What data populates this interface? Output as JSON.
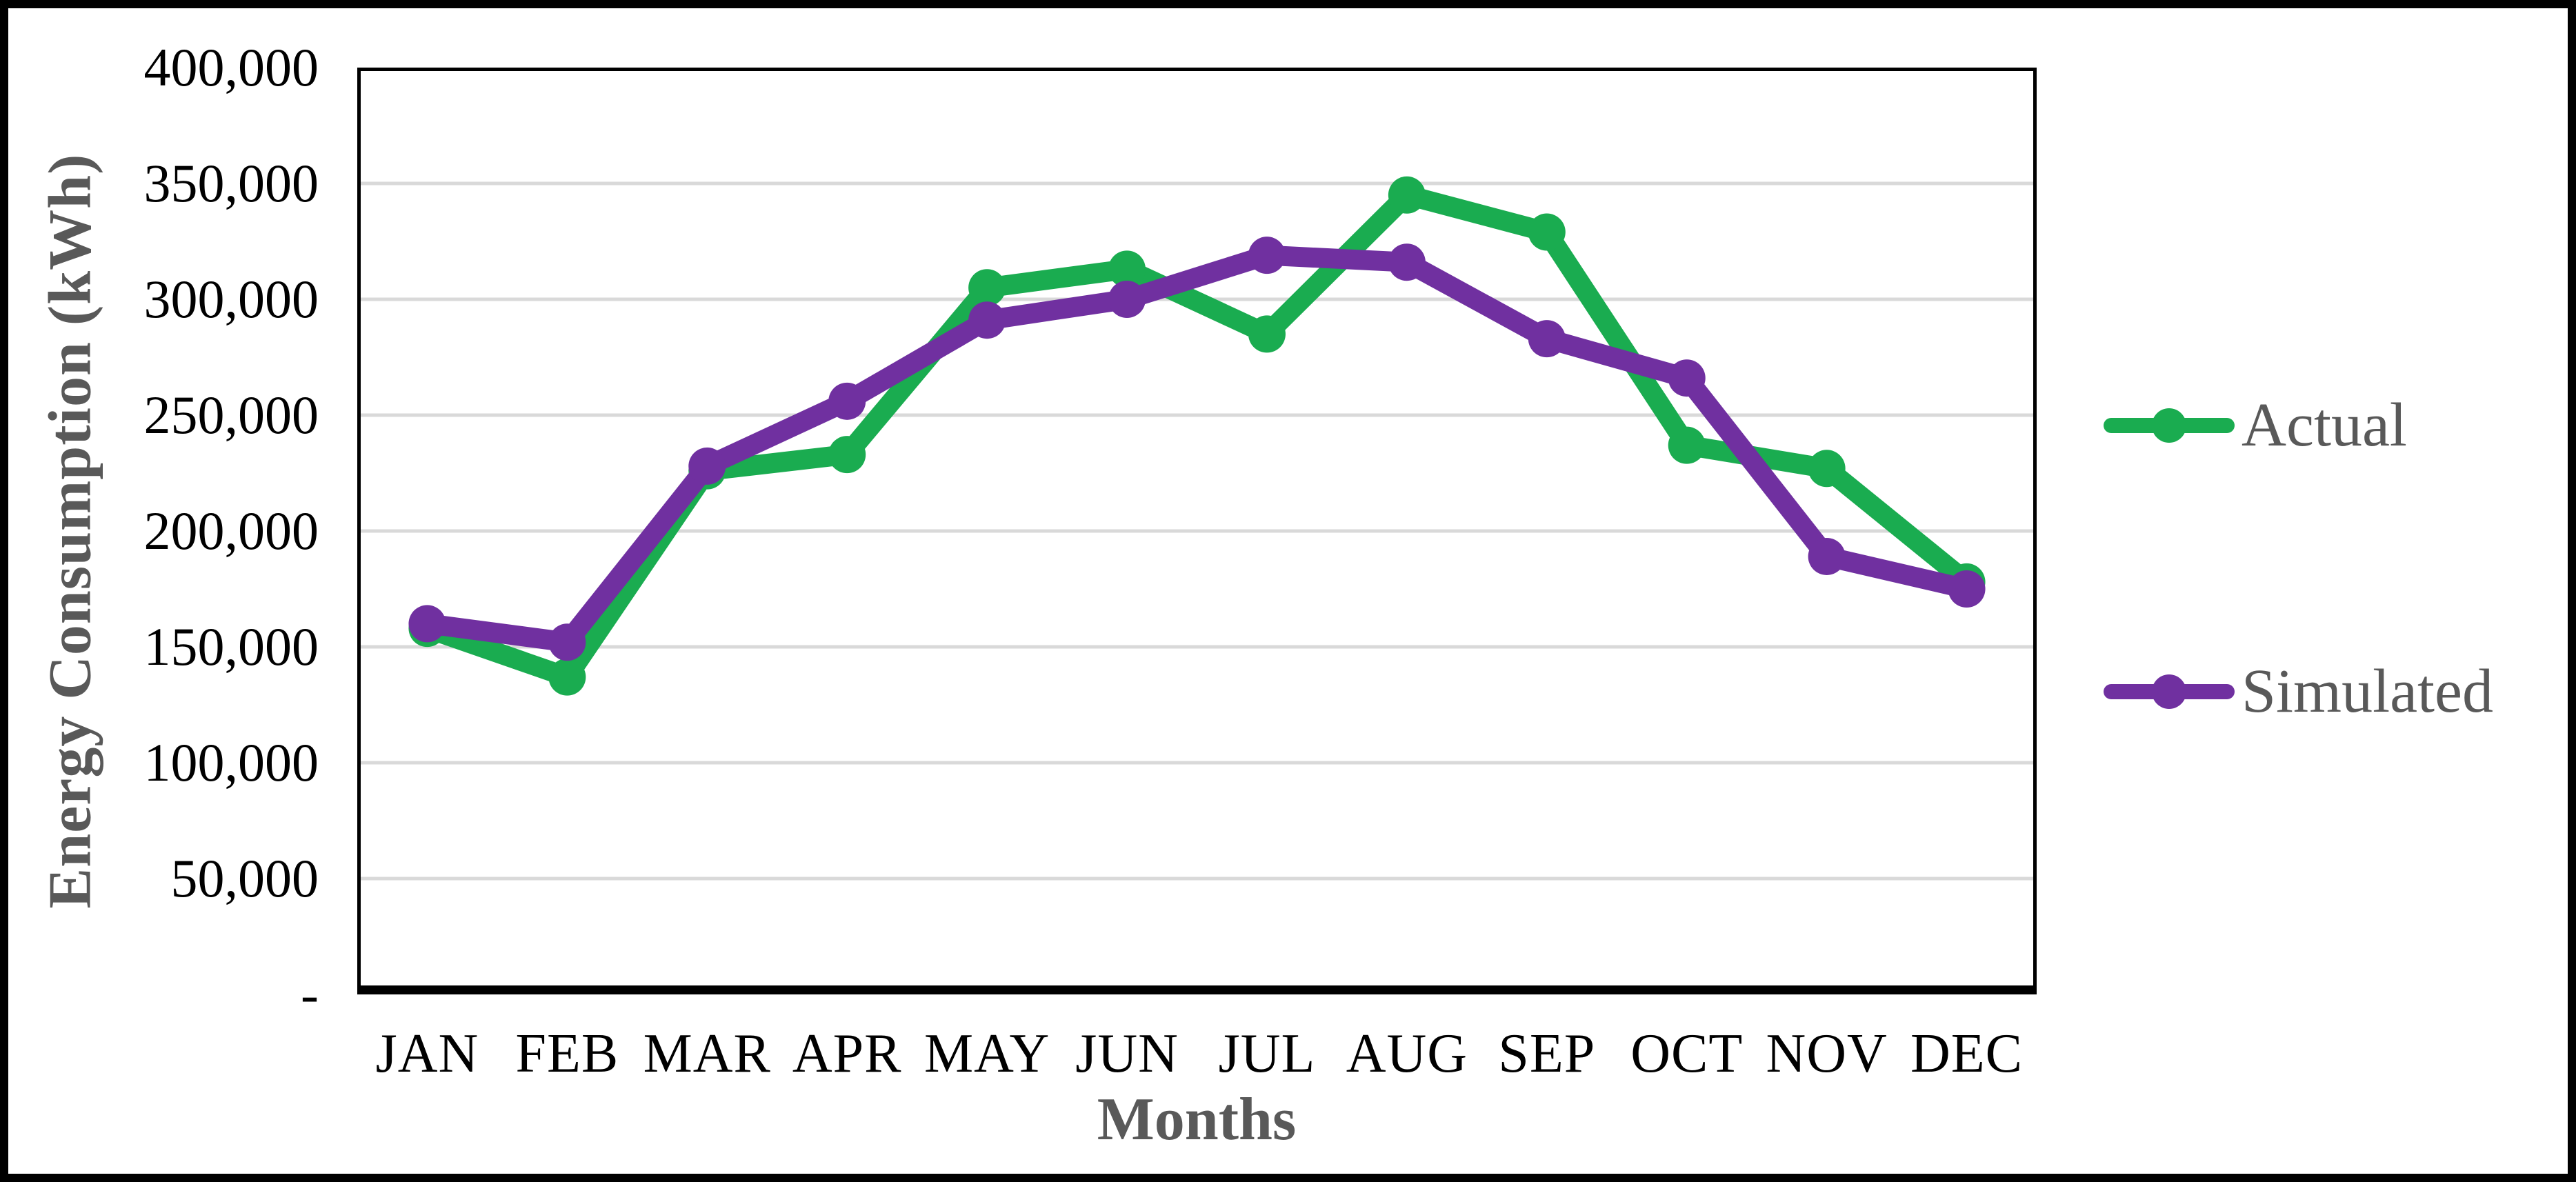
{
  "chart_data": {
    "type": "line",
    "title": "",
    "xlabel": "Months",
    "ylabel": "Energy Consumption (kWh)",
    "categories": [
      "JAN",
      "FEB",
      "MAR",
      "APR",
      "MAY",
      "JUN",
      "JUL",
      "AUG",
      "SEP",
      "OCT",
      "NOV",
      "DEC"
    ],
    "series": [
      {
        "name": "Actual",
        "color": "#1AAC50",
        "marker": "circle",
        "values": [
          158000,
          137000,
          226000,
          233000,
          305000,
          313000,
          285000,
          345000,
          329000,
          237000,
          227000,
          178000
        ]
      },
      {
        "name": "Simulated",
        "color": "#7030A0",
        "marker": "circle",
        "values": [
          160000,
          152000,
          228000,
          256000,
          291000,
          300000,
          319000,
          316000,
          283000,
          266000,
          189000,
          175000
        ]
      }
    ],
    "ylim": [
      0,
      400000
    ],
    "ytick_interval": 50000,
    "ytick_labels": [
      "-",
      "50,000",
      "100,000",
      "150,000",
      "200,000",
      "250,000",
      "300,000",
      "350,000",
      "400,000"
    ],
    "grid": "horizontal-major",
    "legend_position": "right"
  },
  "colors": {
    "actual": "#1AAC50",
    "simulated": "#7030A0",
    "gridline": "#D9D9D9",
    "tick_text": "#000000",
    "title_text": "#595959",
    "border": "#000000",
    "background": "#FFFFFF"
  }
}
